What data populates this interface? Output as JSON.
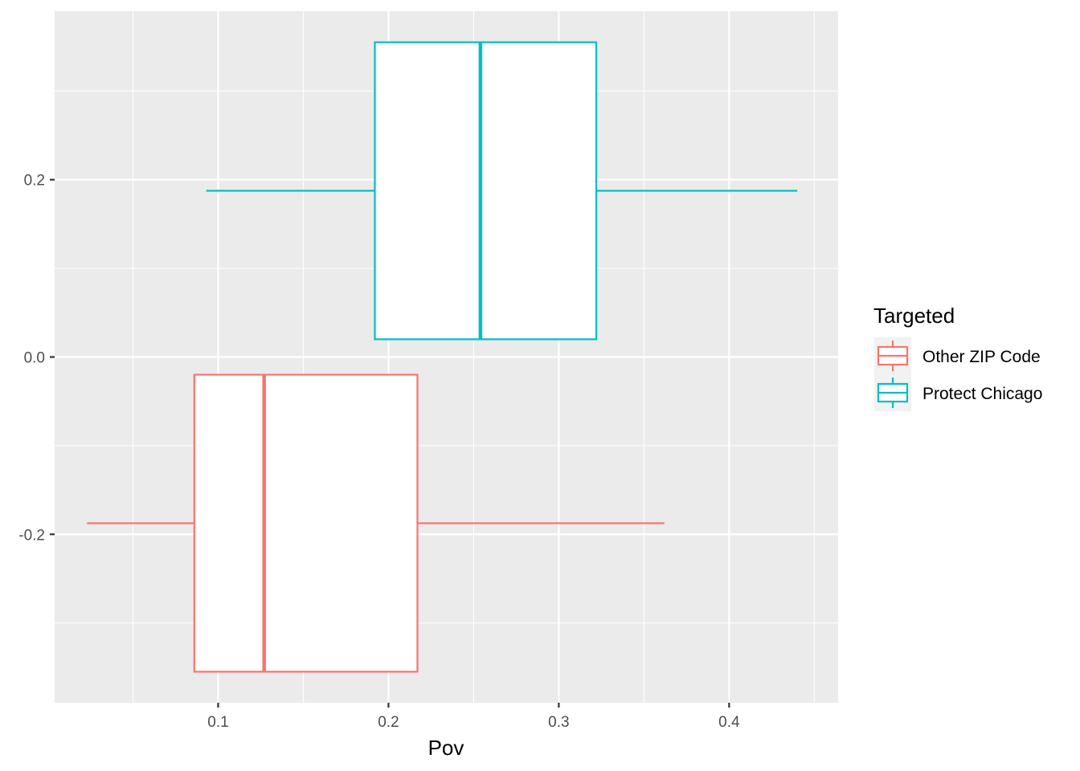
{
  "chart_data": {
    "type": "boxplot",
    "orientation": "horizontal",
    "xlabel": "Pov",
    "ylabel": "",
    "xlim": [
      0.004,
      0.464
    ],
    "ylim": [
      -0.39,
      0.39
    ],
    "x_ticks": [
      0.1,
      0.2,
      0.3,
      0.4
    ],
    "x_tick_labels": [
      "0.1",
      "0.2",
      "0.3",
      "0.4"
    ],
    "x_minor_ticks": [
      0.05,
      0.15,
      0.25,
      0.35,
      0.45
    ],
    "y_ticks": [
      -0.2,
      0.0,
      0.2
    ],
    "y_tick_labels": [
      "-0.2",
      "0.0",
      "0.2"
    ],
    "y_minor_ticks": [
      -0.3,
      -0.1,
      0.1,
      0.3
    ],
    "grid": true,
    "legend": {
      "title": "Targeted",
      "position": "right",
      "entries": [
        "Other ZIP Code",
        "Protect Chicago"
      ]
    },
    "series": [
      {
        "name": "Other ZIP Code",
        "color": "#F8766D",
        "whisker_low": 0.023,
        "q1": 0.086,
        "median": 0.127,
        "q3": 0.217,
        "whisker_high": 0.362,
        "y_center": -0.1875,
        "y_bottom": -0.355,
        "y_top": -0.02
      },
      {
        "name": "Protect Chicago",
        "color": "#00BFC4",
        "whisker_low": 0.093,
        "q1": 0.192,
        "median": 0.254,
        "q3": 0.322,
        "whisker_high": 0.44,
        "y_center": 0.1875,
        "y_bottom": 0.02,
        "y_top": 0.355
      }
    ]
  }
}
